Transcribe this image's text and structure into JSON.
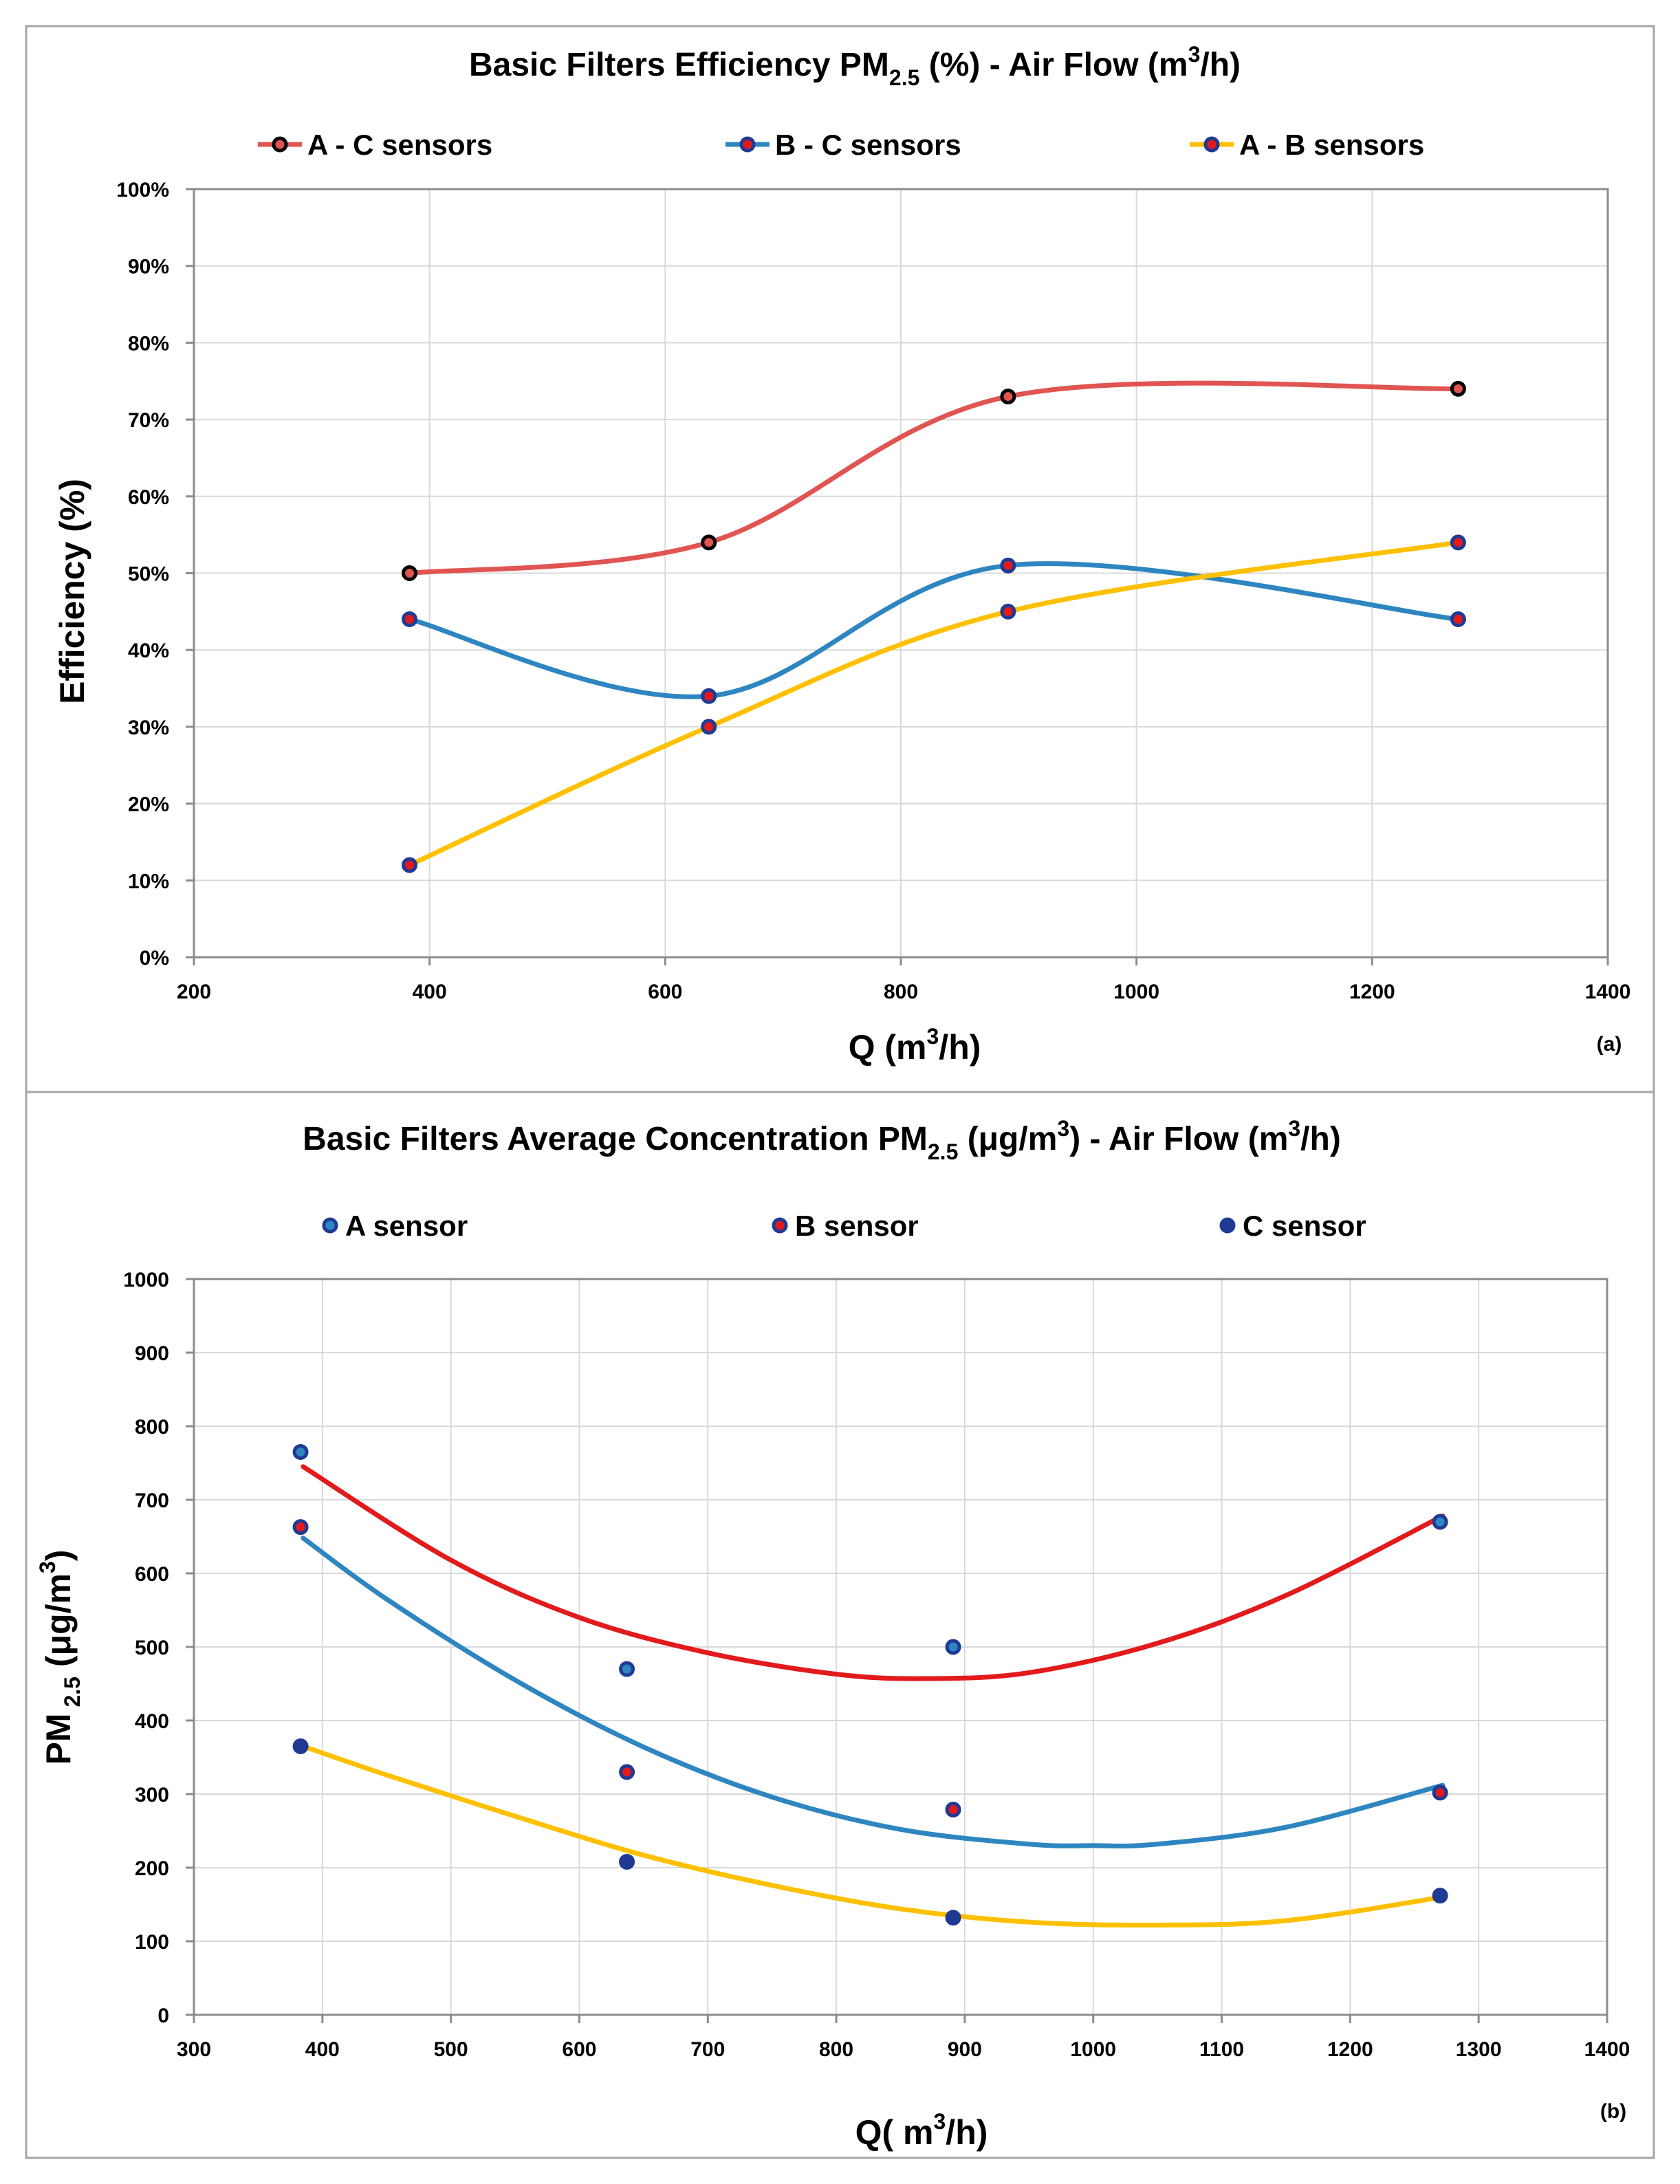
{
  "colors": {
    "red": "#e05452",
    "blue": "#2e86c1",
    "yellow": "#ffc000",
    "dark_red": "#e31a1c",
    "navy": "#1f3a93",
    "black": "#000000"
  },
  "chart_data": [
    {
      "type": "line",
      "title_main": "Basic Filters Efficiency PM",
      "title_sub": "2.5",
      "title_rest": " (%) - Air Flow (m",
      "title_sup": "3",
      "title_end": "/h)",
      "xlabel_main": "Q (m",
      "xlabel_sup": "3",
      "xlabel_end": "/h)",
      "ylabel": "Efficiency (%)",
      "panel_label": "(a)",
      "xlim": [
        200,
        1400
      ],
      "ylim": [
        0,
        100
      ],
      "xticks": [
        "200",
        "400",
        "600",
        "800",
        "1000",
        "1200",
        "1400"
      ],
      "yticks": [
        "0%",
        "10%",
        "20%",
        "30%",
        "40%",
        "50%",
        "60%",
        "70%",
        "80%",
        "90%",
        "100%"
      ],
      "series": [
        {
          "name": "A - C sensors",
          "x": [
            383,
            637,
            891,
            1273
          ],
          "values": [
            50,
            54,
            73,
            74
          ],
          "line": "#e05452",
          "marker_fill": "#e05452",
          "marker_edge": "#000000"
        },
        {
          "name": "B - C sensors",
          "x": [
            383,
            637,
            891,
            1273
          ],
          "values": [
            44,
            34,
            51,
            44
          ],
          "line": "#2e86c1",
          "marker_fill": "#e31a1c",
          "marker_edge": "#1f3a93"
        },
        {
          "name": "A - B sensors",
          "x": [
            383,
            637,
            891,
            1273
          ],
          "values": [
            12,
            30,
            45,
            54
          ],
          "line": "#ffc000",
          "marker_fill": "#e31a1c",
          "marker_edge": "#1f3a93"
        }
      ]
    },
    {
      "type": "scatter",
      "title_main": "Basic Filters Average Concentration PM",
      "title_sub": "2.5",
      "title_rest": " (μg/m",
      "title_sup": "3",
      "title_end": ") - Air Flow (m",
      "title_sup2": "3",
      "title_end2": "/h)",
      "xlabel_main": "Q( m",
      "xlabel_sup": "3",
      "xlabel_end": "/h)",
      "ylabel_main": "PM",
      "ylabel_sub": " 2.5",
      "ylabel_rest": " (μg/m",
      "ylabel_sup": "3",
      "ylabel_end": ")",
      "panel_label": "(b)",
      "xlim": [
        300,
        1400
      ],
      "ylim": [
        0,
        1000
      ],
      "xticks": [
        "300",
        "400",
        "500",
        "600",
        "700",
        "800",
        "900",
        "1000",
        "1100",
        "1200",
        "1300",
        "1400"
      ],
      "yticks": [
        "0",
        "100",
        "200",
        "300",
        "400",
        "500",
        "600",
        "700",
        "800",
        "900",
        "1000"
      ],
      "series": [
        {
          "name": "A sensor",
          "x": [
            383,
            637,
            891,
            1270
          ],
          "values": [
            765,
            470,
            500,
            670
          ],
          "marker_fill": "#2e86c1",
          "marker_edge": "#1f3a93",
          "trend_color": "#e31a1c",
          "trend_points": [
            [
              385,
              745
            ],
            [
              500,
              618
            ],
            [
              600,
              540
            ],
            [
              700,
              492
            ],
            [
              800,
              463
            ],
            [
              870,
              457
            ],
            [
              950,
              465
            ],
            [
              1050,
              505
            ],
            [
              1150,
              570
            ],
            [
              1272,
              678
            ]
          ]
        },
        {
          "name": "B sensor",
          "x": [
            383,
            637,
            891,
            1270
          ],
          "values": [
            663,
            330,
            279,
            302
          ],
          "marker_fill": "#e31a1c",
          "marker_edge": "#1f3a93",
          "trend_color": "#2e86c1",
          "trend_points": [
            [
              385,
              648
            ],
            [
              450,
              565
            ],
            [
              550,
              455
            ],
            [
              650,
              364
            ],
            [
              750,
              296
            ],
            [
              850,
              252
            ],
            [
              950,
              232
            ],
            [
              1000,
              230
            ],
            [
              1050,
              232
            ],
            [
              1150,
              255
            ],
            [
              1272,
              312
            ]
          ]
        },
        {
          "name": "C sensor",
          "x": [
            383,
            637,
            891,
            1270
          ],
          "values": [
            365,
            208,
            132,
            162
          ],
          "marker_fill": "#1f3a93",
          "marker_edge": "#1f3a93",
          "trend_color": "#ffc000",
          "trend_points": [
            [
              385,
              365
            ],
            [
              450,
              326
            ],
            [
              550,
              270
            ],
            [
              650,
              217
            ],
            [
              750,
              176
            ],
            [
              850,
              144
            ],
            [
              950,
              126
            ],
            [
              1050,
              122
            ],
            [
              1150,
              128
            ],
            [
              1272,
              160
            ]
          ]
        }
      ]
    }
  ]
}
